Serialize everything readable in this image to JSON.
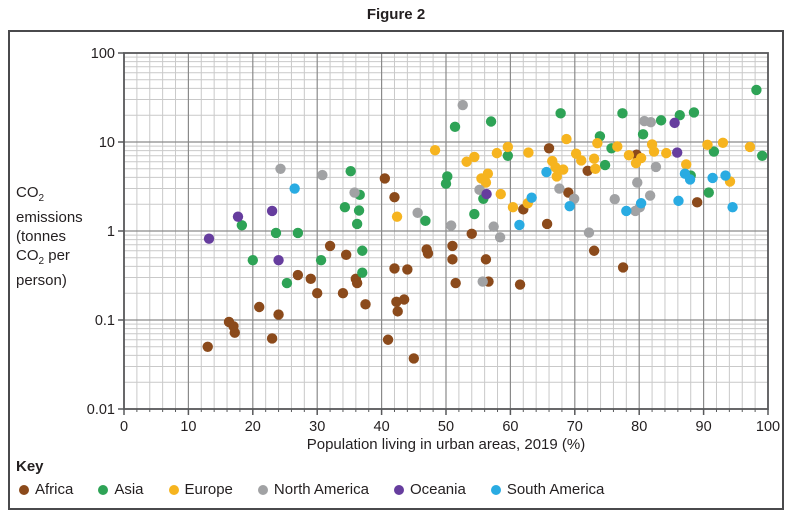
{
  "title": "Figure 2",
  "y_axis": {
    "label_lines": [
      "CO2",
      "emissions",
      "(tonnes",
      "CO2 per",
      "person)"
    ],
    "ticks": [
      {
        "label": "100",
        "value": 100
      },
      {
        "label": "10",
        "value": 10
      },
      {
        "label": "1",
        "value": 1
      },
      {
        "label": "0.1",
        "value": 0.1
      },
      {
        "label": "0.01",
        "value": 0.01
      }
    ]
  },
  "x_axis": {
    "title": "Population living in urban areas, 2019 (%)",
    "ticks": [
      0,
      10,
      20,
      30,
      40,
      50,
      60,
      70,
      80,
      90,
      100
    ]
  },
  "key": {
    "label": "Key",
    "items": [
      {
        "label": "Africa",
        "color": "#8B4A1B"
      },
      {
        "label": "Asia",
        "color": "#2EA356"
      },
      {
        "label": "Europe",
        "color": "#F6B41F"
      },
      {
        "label": "North America",
        "color": "#A1A2A4"
      },
      {
        "label": "Oceania",
        "color": "#663D9E"
      },
      {
        "label": "South America",
        "color": "#29ABE2"
      }
    ]
  },
  "colors": {
    "grid_minor": "#C9C9C9",
    "grid_major": "#8A8A8A",
    "frame": "#57585A",
    "text": "#231F20"
  },
  "chart_data": {
    "type": "scatter",
    "title": "Figure 2",
    "xlabel": "Population living in urban areas, 2019 (%)",
    "ylabel": "CO2 emissions (tonnes CO2 per person)",
    "x_range": [
      0,
      100
    ],
    "y_range": [
      0.01,
      100
    ],
    "y_scale": "log",
    "grid": "on",
    "legend_position": "bottom",
    "series": [
      {
        "name": "Africa",
        "color": "#8B4A1B",
        "points": [
          [
            13,
            0.05
          ],
          [
            16.3,
            0.095
          ],
          [
            17,
            0.085
          ],
          [
            17.2,
            0.072
          ],
          [
            21,
            0.14
          ],
          [
            23,
            0.062
          ],
          [
            24,
            0.115
          ],
          [
            27,
            0.32
          ],
          [
            29,
            0.29
          ],
          [
            30,
            0.2
          ],
          [
            32,
            0.68
          ],
          [
            34,
            0.2
          ],
          [
            34.5,
            0.54
          ],
          [
            36,
            0.29
          ],
          [
            36.2,
            0.26
          ],
          [
            37.5,
            0.15
          ],
          [
            40.5,
            3.9
          ],
          [
            41,
            0.06
          ],
          [
            42,
            2.4
          ],
          [
            42,
            0.38
          ],
          [
            42.3,
            0.16
          ],
          [
            42.5,
            0.125
          ],
          [
            43.5,
            0.17
          ],
          [
            44,
            0.37
          ],
          [
            45,
            0.037
          ],
          [
            47,
            0.62
          ],
          [
            47.2,
            0.56
          ],
          [
            51,
            0.68
          ],
          [
            51,
            0.48
          ],
          [
            51.5,
            0.26
          ],
          [
            54,
            0.93
          ],
          [
            56.2,
            0.48
          ],
          [
            56.6,
            0.27
          ],
          [
            62,
            1.75
          ],
          [
            61.5,
            0.25
          ],
          [
            65.7,
            1.2
          ],
          [
            66,
            8.5
          ],
          [
            69,
            2.7
          ],
          [
            72,
            4.75
          ],
          [
            73,
            0.6
          ],
          [
            77.5,
            0.39
          ],
          [
            79.6,
            7.2
          ],
          [
            89,
            2.1
          ]
        ]
      },
      {
        "name": "Asia",
        "color": "#2EA356",
        "points": [
          [
            18.3,
            1.16
          ],
          [
            20,
            0.47
          ],
          [
            23.6,
            0.95
          ],
          [
            25.3,
            0.26
          ],
          [
            27,
            0.95
          ],
          [
            30.6,
            0.47
          ],
          [
            34.3,
            1.85
          ],
          [
            35.2,
            4.7
          ],
          [
            36.2,
            1.2
          ],
          [
            36.6,
            2.55
          ],
          [
            36.5,
            1.7
          ],
          [
            37,
            0.6
          ],
          [
            37,
            0.34
          ],
          [
            46.8,
            1.3
          ],
          [
            50.2,
            4.1
          ],
          [
            50,
            3.4
          ],
          [
            51.4,
            14.8
          ],
          [
            54.4,
            1.55
          ],
          [
            55.8,
            2.3
          ],
          [
            57,
            17
          ],
          [
            59.6,
            7.0
          ],
          [
            67.8,
            21
          ],
          [
            73.9,
            11.6
          ],
          [
            74.7,
            5.5
          ],
          [
            75.7,
            8.5
          ],
          [
            77.4,
            21
          ],
          [
            80.6,
            12.2
          ],
          [
            83.4,
            17.5
          ],
          [
            86.3,
            20
          ],
          [
            88.5,
            21.5
          ],
          [
            88,
            4.2
          ],
          [
            90.8,
            2.7
          ],
          [
            91.6,
            7.8
          ],
          [
            98.2,
            38.5
          ],
          [
            99.1,
            7.0
          ]
        ]
      },
      {
        "name": "Europe",
        "color": "#F6B41F",
        "points": [
          [
            42.4,
            1.45
          ],
          [
            48.3,
            8.1
          ],
          [
            53.2,
            6.0
          ],
          [
            54.4,
            6.8
          ],
          [
            55.5,
            3.9
          ],
          [
            56.5,
            4.4
          ],
          [
            56.2,
            3.5
          ],
          [
            57.9,
            7.5
          ],
          [
            58.5,
            2.6
          ],
          [
            59.6,
            8.8
          ],
          [
            60.4,
            1.85
          ],
          [
            62.8,
            7.6
          ],
          [
            62.7,
            2.05
          ],
          [
            66.5,
            6.1
          ],
          [
            67,
            5.2
          ],
          [
            67.2,
            4.1
          ],
          [
            68.2,
            4.9
          ],
          [
            68.7,
            10.8
          ],
          [
            70.2,
            7.4
          ],
          [
            71,
            6.2
          ],
          [
            73,
            6.5
          ],
          [
            73.2,
            5.0
          ],
          [
            73.5,
            9.7
          ],
          [
            76.6,
            8.9
          ],
          [
            78.4,
            7.1
          ],
          [
            79.5,
            5.8
          ],
          [
            80.3,
            6.6
          ],
          [
            82,
            9.4
          ],
          [
            82.3,
            7.8
          ],
          [
            84.2,
            7.5
          ],
          [
            87.3,
            5.6
          ],
          [
            90.6,
            9.3
          ],
          [
            93,
            9.8
          ],
          [
            94.1,
            3.6
          ],
          [
            97.2,
            8.8
          ]
        ]
      },
      {
        "name": "North America",
        "color": "#A1A2A4",
        "points": [
          [
            24.3,
            5.0
          ],
          [
            30.8,
            4.25
          ],
          [
            35.8,
            2.7
          ],
          [
            45.6,
            1.6
          ],
          [
            50.8,
            1.15
          ],
          [
            52.6,
            26
          ],
          [
            55.2,
            2.9
          ],
          [
            55.7,
            0.27
          ],
          [
            57.4,
            1.12
          ],
          [
            58.4,
            0.85
          ],
          [
            67.6,
            3.0
          ],
          [
            69.9,
            2.3
          ],
          [
            72.2,
            0.96
          ],
          [
            76.2,
            2.28
          ],
          [
            79.4,
            1.68
          ],
          [
            80.1,
            1.85
          ],
          [
            79.7,
            3.5
          ],
          [
            81.7,
            2.5
          ],
          [
            80.8,
            17.2
          ],
          [
            81.8,
            16.7
          ],
          [
            82.6,
            5.25
          ]
        ]
      },
      {
        "name": "Oceania",
        "color": "#663D9E",
        "points": [
          [
            13.2,
            0.82
          ],
          [
            17.7,
            1.45
          ],
          [
            23,
            1.68
          ],
          [
            24,
            0.47
          ],
          [
            56.3,
            2.6
          ],
          [
            85.5,
            16.4
          ],
          [
            85.9,
            7.6
          ]
        ]
      },
      {
        "name": "South America",
        "color": "#29ABE2",
        "points": [
          [
            26.5,
            3.0
          ],
          [
            61.4,
            1.17
          ],
          [
            63.3,
            2.37
          ],
          [
            65.6,
            4.6
          ],
          [
            69.2,
            1.9
          ],
          [
            78,
            1.68
          ],
          [
            80.3,
            2.05
          ],
          [
            86.1,
            2.18
          ],
          [
            87.1,
            4.4
          ],
          [
            87.9,
            3.8
          ],
          [
            91.4,
            3.95
          ],
          [
            93.4,
            4.2
          ],
          [
            94.5,
            1.85
          ]
        ]
      }
    ]
  }
}
